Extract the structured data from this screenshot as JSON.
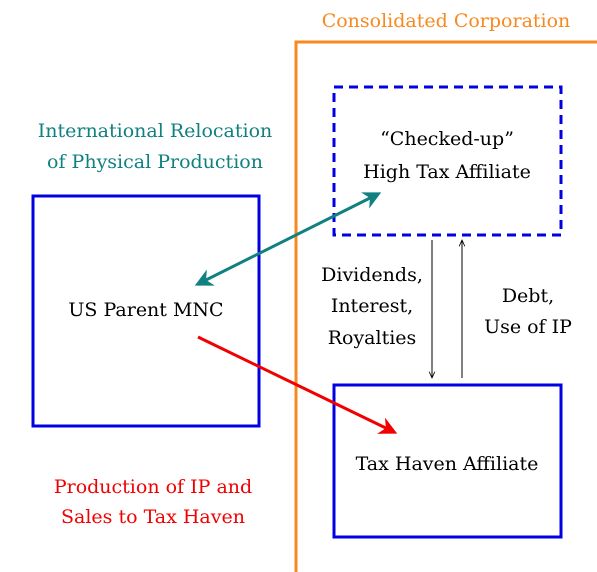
{
  "group": {
    "label": "Consolidated Corporation"
  },
  "nodes": [
    {
      "label": [
        "“Checked-up”",
        "High Tax Affiliate"
      ]
    },
    {
      "label": [
        "US Parent MNC"
      ]
    },
    {
      "label": [
        "Tax Haven Affiliate"
      ]
    }
  ],
  "edges": [
    {
      "label": [
        "International Relocation",
        "of Physical Production"
      ]
    },
    {
      "label": [
        "Production of IP and",
        "Sales to Tax Haven"
      ]
    },
    {
      "label": [
        "Dividends,",
        "Interest,",
        "Royalties"
      ]
    },
    {
      "label": [
        "Debt,",
        "Use of IP"
      ]
    }
  ]
}
